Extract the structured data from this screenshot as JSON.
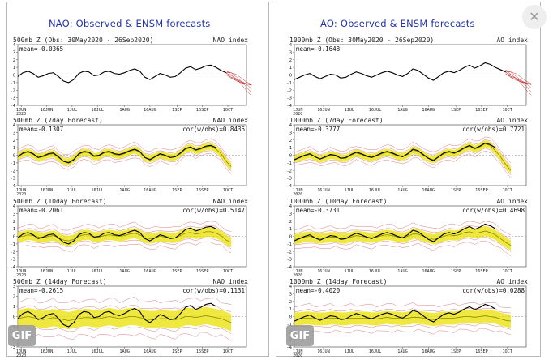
{
  "titles": {
    "left": "NAO: Observed & ENSM forecasts",
    "right": "AO: Observed & ENSM forecasts"
  },
  "badges": {
    "gif": "GIF"
  },
  "icons": {
    "close": "close-icon"
  },
  "colors": {
    "title": "#2233aa",
    "observed": "#000000",
    "forecast_mean": "#e8e000",
    "spread": "#c83232",
    "frame": "#555555"
  },
  "chart_data": [
    {
      "type": "line",
      "column": "left",
      "row": 0,
      "header": "500mb Z (Obs: 30May2020 - 26Sep2020)",
      "index": "NAO index",
      "mean": "mean=-0.0365",
      "cor": "",
      "x_ticks": [
        "1JUN",
        "16JUN",
        "1JUL",
        "16JUL",
        "1AUG",
        "16AUG",
        "1SEP",
        "16SEP",
        "1OCT"
      ],
      "x_year": "2020",
      "y_ticks": [
        4,
        3,
        2,
        1,
        0,
        -1,
        -2,
        -3,
        -4
      ],
      "ylim": [
        -4,
        4
      ],
      "observed": [
        -0.2,
        0.3,
        0.5,
        0.2,
        -0.3,
        -0.1,
        0.2,
        0.3,
        -0.2,
        -0.8,
        -1.0,
        -0.6,
        0.2,
        0.5,
        0.4,
        -0.1,
        0.0,
        0.4,
        0.5,
        0.2,
        0.1,
        0.3,
        0.6,
        0.8,
        0.5,
        -0.3,
        -0.6,
        -0.2,
        0.2,
        0.0,
        -0.3,
        -0.2,
        0.3,
        0.9,
        1.1,
        0.7,
        0.9,
        1.2,
        1.3,
        1.0,
        0.6,
        0.3
      ],
      "forecast": null
    },
    {
      "type": "line",
      "column": "left",
      "row": 1,
      "header": "500mb Z (7day Forecast)",
      "index": "NAO index",
      "mean": "mean=-0.1307",
      "cor": "cor(w/obs)=0.8436",
      "x_ticks": [
        "1JUN",
        "16JUN",
        "1JUL",
        "16JUL",
        "1AUG",
        "16AUG",
        "1SEP",
        "16SEP",
        "1OCT"
      ],
      "x_year": "2020",
      "y_ticks": [
        4,
        3,
        2,
        1,
        0,
        -1,
        -2,
        -3,
        -4
      ],
      "ylim": [
        -4,
        4
      ],
      "observed": [
        -0.2,
        0.3,
        0.5,
        0.2,
        -0.3,
        -0.1,
        0.2,
        0.3,
        -0.2,
        -0.8,
        -1.0,
        -0.6,
        0.2,
        0.5,
        0.4,
        -0.1,
        0.0,
        0.4,
        0.5,
        0.2,
        0.1,
        0.3,
        0.6,
        0.8,
        0.5,
        -0.3,
        -0.6,
        -0.2,
        0.2,
        0.0,
        -0.3,
        -0.2,
        0.3,
        0.9,
        1.1,
        0.7,
        0.9,
        1.2,
        1.3,
        1.0
      ],
      "forecast": [
        -0.1,
        0.2,
        0.4,
        0.1,
        -0.3,
        -0.2,
        0.1,
        0.2,
        -0.3,
        -0.8,
        -0.9,
        -0.5,
        0.1,
        0.4,
        0.3,
        -0.2,
        -0.1,
        0.3,
        0.4,
        0.1,
        0.0,
        0.2,
        0.5,
        0.7,
        0.4,
        -0.3,
        -0.5,
        -0.2,
        0.1,
        -0.1,
        -0.3,
        -0.2,
        0.2,
        0.8,
        1.0,
        0.6,
        0.8,
        1.1,
        1.2,
        0.8,
        0.2,
        -0.8,
        -1.5
      ]
    },
    {
      "type": "line",
      "column": "left",
      "row": 2,
      "header": "500mb Z (10day Forecast)",
      "index": "NAO index",
      "mean": "mean=-0.2061",
      "cor": "cor(w/obs)=0.5147",
      "x_ticks": [
        "1JUN",
        "16JUN",
        "1JUL",
        "16JUL",
        "1AUG",
        "16AUG",
        "1SEP",
        "16SEP",
        "1OCT"
      ],
      "x_year": "2020",
      "y_ticks": [
        4,
        3,
        2,
        1,
        0,
        -1,
        -2,
        -3,
        -4
      ],
      "ylim": [
        -4,
        4
      ],
      "observed": [
        -0.2,
        0.3,
        0.5,
        0.2,
        -0.3,
        -0.1,
        0.2,
        0.3,
        -0.2,
        -0.8,
        -1.0,
        -0.6,
        0.2,
        0.5,
        0.4,
        -0.1,
        0.0,
        0.4,
        0.5,
        0.2,
        0.1,
        0.3,
        0.6,
        0.8,
        0.5,
        -0.3,
        -0.6,
        -0.2,
        0.2,
        0.0,
        -0.3,
        -0.2,
        0.3,
        0.9,
        1.1,
        0.7,
        0.9,
        1.2,
        1.3,
        1.0
      ],
      "forecast": [
        -0.1,
        0.0,
        0.2,
        0.1,
        -0.1,
        -0.2,
        0.0,
        0.1,
        -0.2,
        -0.5,
        -0.6,
        -0.4,
        0.0,
        0.2,
        0.2,
        -0.1,
        -0.1,
        0.1,
        0.2,
        0.1,
        0.0,
        0.1,
        0.3,
        0.4,
        0.2,
        -0.2,
        -0.3,
        -0.2,
        0.0,
        -0.1,
        -0.2,
        -0.2,
        0.1,
        0.4,
        0.5,
        0.3,
        0.4,
        0.6,
        0.6,
        0.4,
        0.1,
        -0.5,
        -0.8
      ]
    },
    {
      "type": "line",
      "column": "left",
      "row": 3,
      "header": "500mb Z (14day Forecast)",
      "index": "NAO index",
      "mean": "mean=-0.2615",
      "cor": "cor(w/obs)=0.1131",
      "x_ticks": [
        "1JUN",
        "16JUN",
        "1JUL",
        "16JUL",
        "1AUG",
        "16AUG",
        "1SEP",
        "16SEP",
        "1OCT"
      ],
      "x_year": "2020",
      "y_ticks": [
        3,
        2,
        1,
        0,
        -1,
        -2,
        -3
      ],
      "ylim": [
        -3,
        3
      ],
      "observed": [
        -0.2,
        0.3,
        0.5,
        0.2,
        -0.3,
        -0.1,
        0.2,
        0.3,
        -0.2,
        -0.8,
        -1.0,
        -0.6,
        0.2,
        0.5,
        0.4,
        -0.1,
        0.0,
        0.4,
        0.5,
        0.2,
        0.1,
        0.3,
        0.6,
        0.8,
        0.5,
        -0.3,
        -0.6,
        -0.2,
        0.2,
        0.0,
        -0.3,
        -0.2,
        0.3,
        0.9,
        1.1,
        0.7,
        0.9,
        1.2,
        1.3,
        1.0
      ],
      "forecast": [
        -0.2,
        -0.1,
        0.0,
        -0.1,
        -0.2,
        -0.3,
        -0.2,
        -0.1,
        -0.2,
        -0.3,
        -0.4,
        -0.3,
        -0.2,
        -0.1,
        -0.1,
        -0.2,
        -0.2,
        -0.1,
        0.0,
        -0.1,
        -0.2,
        -0.1,
        0.0,
        0.0,
        -0.1,
        -0.2,
        -0.3,
        -0.3,
        -0.2,
        -0.2,
        -0.3,
        -0.3,
        -0.2,
        0.0,
        0.0,
        -0.1,
        0.0,
        0.1,
        0.0,
        -0.1,
        -0.2,
        -0.4,
        -0.6
      ]
    },
    {
      "type": "line",
      "column": "right",
      "row": 0,
      "header": "1000mb Z (Obs: 30May2020 - 26Sep2020)",
      "index": "AO index",
      "mean": "mean=-0.1648",
      "cor": "",
      "x_ticks": [
        "1JUN",
        "16JUN",
        "1JUL",
        "16JUL",
        "1AUG",
        "16AUG",
        "1SEP",
        "16SEP",
        "1OCT"
      ],
      "x_year": "2020",
      "y_ticks": [
        4,
        3,
        2,
        1,
        0,
        -1,
        -2,
        -3,
        -4
      ],
      "ylim": [
        -4,
        4
      ],
      "observed": [
        -0.6,
        -0.3,
        0.0,
        0.2,
        -0.2,
        -0.5,
        -0.2,
        0.1,
        0.0,
        -0.4,
        -0.3,
        0.1,
        0.4,
        0.2,
        -0.1,
        -0.3,
        0.0,
        0.3,
        0.5,
        0.3,
        0.0,
        -0.2,
        0.2,
        0.8,
        0.6,
        0.1,
        -0.4,
        -0.7,
        -0.2,
        0.3,
        0.5,
        0.3,
        0.6,
        1.0,
        1.3,
        0.9,
        1.2,
        1.6,
        1.4,
        1.0,
        0.7,
        0.4
      ],
      "forecast": null
    },
    {
      "type": "line",
      "column": "right",
      "row": 1,
      "header": "1000mb Z (7day Forecast)",
      "index": "AO index",
      "mean": "mean=-0.3777",
      "cor": "cor(w/obs)=0.7721",
      "x_ticks": [
        "1JUN",
        "16JUN",
        "1JUL",
        "16JUL",
        "1AUG",
        "16AUG",
        "1SEP",
        "16SEP",
        "1OCT"
      ],
      "x_year": "2020",
      "y_ticks": [
        4,
        3,
        2,
        1,
        0,
        -1,
        -2,
        -3,
        -4
      ],
      "ylim": [
        -4,
        4
      ],
      "observed": [
        -0.6,
        -0.3,
        0.0,
        0.2,
        -0.2,
        -0.5,
        -0.2,
        0.1,
        0.0,
        -0.4,
        -0.3,
        0.1,
        0.4,
        0.2,
        -0.1,
        -0.3,
        0.0,
        0.3,
        0.5,
        0.3,
        0.0,
        -0.2,
        0.2,
        0.8,
        0.6,
        0.1,
        -0.4,
        -0.7,
        -0.2,
        0.3,
        0.5,
        0.3,
        0.6,
        1.0,
        1.3,
        0.9,
        1.2,
        1.6,
        1.4,
        1.0
      ],
      "forecast": [
        -0.5,
        -0.3,
        -0.1,
        0.1,
        -0.2,
        -0.5,
        -0.3,
        0.0,
        -0.1,
        -0.4,
        -0.4,
        0.0,
        0.3,
        0.1,
        -0.2,
        -0.3,
        -0.1,
        0.2,
        0.4,
        0.2,
        -0.1,
        -0.2,
        0.1,
        0.7,
        0.5,
        0.0,
        -0.4,
        -0.6,
        -0.2,
        0.2,
        0.4,
        0.2,
        0.5,
        0.9,
        1.2,
        0.8,
        1.1,
        1.5,
        1.3,
        0.6,
        -0.2,
        -1.2,
        -2.0
      ]
    },
    {
      "type": "line",
      "column": "right",
      "row": 2,
      "header": "1000mb Z (10day Forecast)",
      "index": "AO index",
      "mean": "mean=-0.3731",
      "cor": "cor(w/obs)=0.4698",
      "x_ticks": [
        "1JUN",
        "16JUN",
        "1JUL",
        "16JUL",
        "1AUG",
        "16AUG",
        "1SEP",
        "16SEP",
        "1OCT"
      ],
      "x_year": "2020",
      "y_ticks": [
        4,
        3,
        2,
        1,
        0,
        -1,
        -2,
        -3,
        -4
      ],
      "ylim": [
        -4,
        4
      ],
      "observed": [
        -0.6,
        -0.3,
        0.0,
        0.2,
        -0.2,
        -0.5,
        -0.2,
        0.1,
        0.0,
        -0.4,
        -0.3,
        0.1,
        0.4,
        0.2,
        -0.1,
        -0.3,
        0.0,
        0.3,
        0.5,
        0.3,
        0.0,
        -0.2,
        0.2,
        0.8,
        0.6,
        0.1,
        -0.4,
        -0.7,
        -0.2,
        0.3,
        0.5,
        0.3,
        0.6,
        1.0,
        1.3,
        0.9,
        1.2,
        1.6,
        1.4,
        1.0
      ],
      "forecast": [
        -0.4,
        -0.3,
        -0.1,
        0.0,
        -0.2,
        -0.3,
        -0.2,
        -0.1,
        -0.1,
        -0.3,
        -0.3,
        -0.1,
        0.1,
        0.0,
        -0.1,
        -0.2,
        -0.1,
        0.1,
        0.2,
        0.1,
        -0.1,
        -0.2,
        0.0,
        0.3,
        0.3,
        0.0,
        -0.2,
        -0.4,
        -0.2,
        0.0,
        0.2,
        0.1,
        0.2,
        0.5,
        0.6,
        0.4,
        0.5,
        0.7,
        0.5,
        0.2,
        -0.3,
        -0.8,
        -1.2
      ]
    },
    {
      "type": "line",
      "column": "right",
      "row": 3,
      "header": "1000mb Z (14day Forecast)",
      "index": "AO index",
      "mean": "mean=-0.4020",
      "cor": "cor(w/obs)=0.0288",
      "x_ticks": [
        "1JUN",
        "16JUN",
        "1JUL",
        "16JUL",
        "1AUG",
        "16AUG",
        "1SEP",
        "16SEP",
        "1OCT"
      ],
      "x_year": "2020",
      "y_ticks": [
        4,
        3,
        2,
        1,
        0,
        -1,
        -2,
        -3,
        -4
      ],
      "ylim": [
        -4,
        4
      ],
      "observed": [
        -0.6,
        -0.3,
        0.0,
        0.2,
        -0.2,
        -0.5,
        -0.2,
        0.1,
        0.0,
        -0.4,
        -0.3,
        0.1,
        0.4,
        0.2,
        -0.1,
        -0.3,
        0.0,
        0.3,
        0.5,
        0.3,
        0.0,
        -0.2,
        0.2,
        0.8,
        0.6,
        0.1,
        -0.4,
        -0.7,
        -0.2,
        0.3,
        0.5,
        0.3,
        0.6,
        1.0,
        1.3,
        0.9,
        1.2,
        1.6,
        1.4,
        1.0
      ],
      "forecast": [
        -0.3,
        -0.3,
        -0.2,
        -0.2,
        -0.3,
        -0.3,
        -0.3,
        -0.2,
        -0.2,
        -0.3,
        -0.3,
        -0.2,
        -0.2,
        -0.2,
        -0.2,
        -0.3,
        -0.3,
        -0.2,
        -0.1,
        -0.2,
        -0.2,
        -0.3,
        -0.2,
        -0.1,
        -0.1,
        -0.2,
        -0.3,
        -0.4,
        -0.3,
        -0.2,
        -0.2,
        -0.2,
        -0.1,
        0.0,
        0.0,
        -0.1,
        0.0,
        0.1,
        0.0,
        -0.1,
        -0.3,
        -0.5,
        -0.6
      ]
    }
  ]
}
